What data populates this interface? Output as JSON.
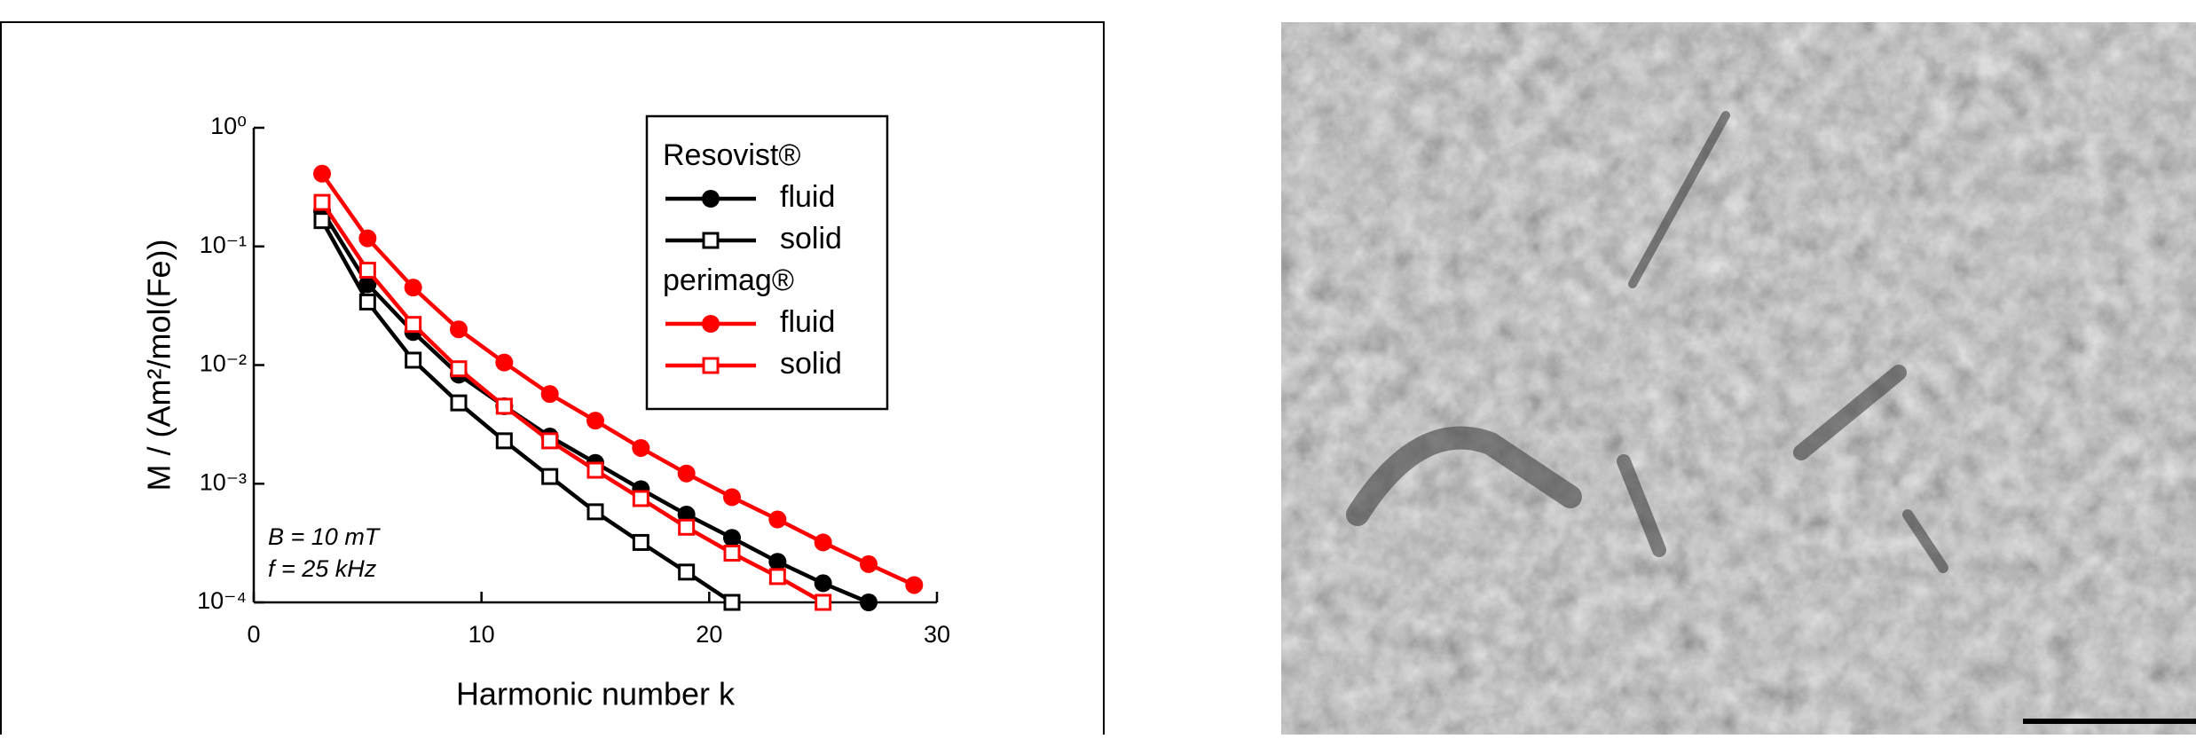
{
  "chart_data": {
    "type": "line",
    "xlabel": "Harmonic number  k",
    "ylabel": "M / (Am²/mol(Fe))",
    "annotations": [
      "B = 10 mT",
      "f = 25 kHz"
    ],
    "x": [
      3,
      5,
      7,
      9,
      11,
      13,
      15,
      17,
      19,
      21,
      23,
      25,
      27,
      29
    ],
    "xlim": [
      0,
      30
    ],
    "xticks": [
      0,
      10,
      20,
      30
    ],
    "ylim": [
      0.0001,
      1
    ],
    "log_y": true,
    "yticks": [
      {
        "value": 0.0001,
        "label": "10⁻⁴"
      },
      {
        "value": 0.001,
        "label": "10⁻³"
      },
      {
        "value": 0.01,
        "label": "10⁻²"
      },
      {
        "value": 0.1,
        "label": "10⁻¹"
      },
      {
        "value": 1,
        "label": "10⁰"
      }
    ],
    "legend": "upper right",
    "series_groups": [
      {
        "name": "Resovist®",
        "series": [
          {
            "name": "fluid",
            "color": "#000000",
            "marker": "filled-circle",
            "values": [
              0.2,
              0.048,
              0.019,
              0.0083,
              0.0045,
              0.0025,
              0.0015,
              0.0009,
              0.00055,
              0.00035,
              0.00022,
              0.000145,
              0.0001,
              null
            ]
          },
          {
            "name": "solid",
            "color": "#000000",
            "marker": "open-square",
            "values": [
              0.165,
              0.034,
              0.011,
              0.0048,
              0.0023,
              0.00115,
              0.00058,
              0.00032,
              0.00018,
              0.0001,
              null,
              null,
              null,
              null
            ]
          }
        ]
      },
      {
        "name": "perimag®",
        "series": [
          {
            "name": "fluid",
            "color": "#ff0000",
            "marker": "filled-circle",
            "values": [
              0.41,
              0.117,
              0.045,
              0.02,
              0.0105,
              0.0057,
              0.0034,
              0.002,
              0.00122,
              0.00077,
              0.0005,
              0.00032,
              0.00021,
              0.00014
            ]
          },
          {
            "name": "solid",
            "color": "#ff0000",
            "marker": "open-square",
            "values": [
              0.235,
              0.063,
              0.022,
              0.0093,
              0.0045,
              0.0023,
              0.0013,
              0.00075,
              0.00043,
              0.00026,
              0.000165,
              0.0001,
              null,
              null
            ]
          }
        ]
      }
    ]
  }
}
